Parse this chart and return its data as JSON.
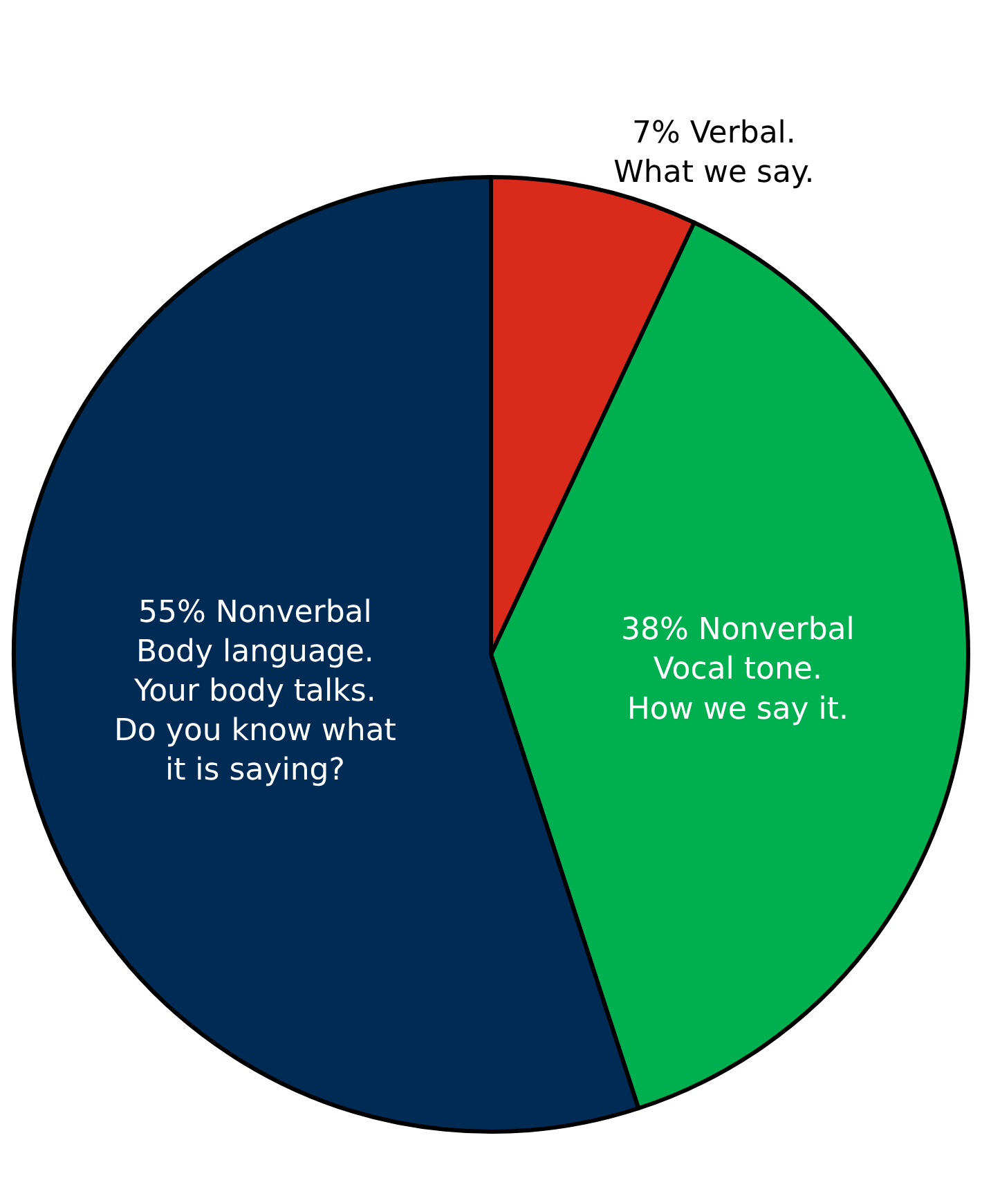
{
  "chart_data": {
    "type": "pie",
    "categories": [
      "7% Verbal.\nWhat we say.",
      "38% Nonverbal\nVocal tone.\nHow we say it.",
      "55% Nonverbal\nBody language.\nYour body talks.\nDo you know what\nit is saying?"
    ],
    "values": [
      7,
      38,
      55
    ],
    "colors": [
      "#d92a1c",
      "#00b050",
      "#002b55"
    ],
    "legend": false
  }
}
